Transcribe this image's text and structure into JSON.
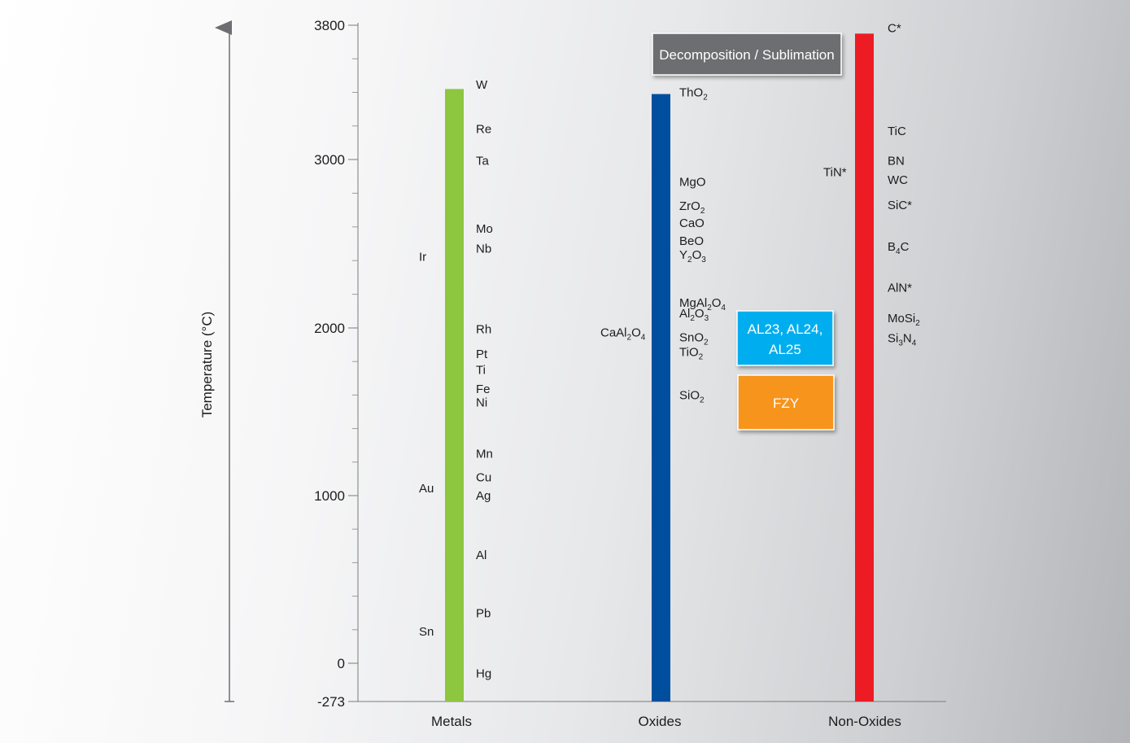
{
  "y_axis_label": "Temperature (°C)",
  "y_ticks": [
    "3800",
    "3000",
    "2000",
    "1000",
    "0",
    "-273"
  ],
  "categories": [
    "Metals",
    "Oxides",
    "Non-Oxides"
  ],
  "colors": {
    "metals_bar": "#8dc63f",
    "oxides_bar": "#004f9f",
    "nonoxides_bar": "#ed1c24",
    "decomposition_box": "#6d6e71",
    "al_box": "#00aeef",
    "fzy_box": "#f7941d"
  },
  "boxes": {
    "decomposition": "Decomposition / Sublimation",
    "al_line1": "AL23, AL24,",
    "al_line2": "AL25",
    "fzy": "FZY"
  },
  "chart_data": {
    "type": "bar",
    "ylabel": "Temperature (°C)",
    "ylim": [
      -273,
      3800
    ],
    "y_ticks": [
      3800,
      3000,
      2000,
      1000,
      0,
      -273
    ],
    "grid": false,
    "categories": [
      "Metals",
      "Oxides",
      "Non-Oxides"
    ],
    "series": [
      {
        "values": [
          3420,
          3390,
          3750
        ]
      }
    ],
    "materials": {
      "metals": [
        {
          "parts": [
            {
              "t": "W"
            }
          ],
          "temp": 3422
        },
        {
          "parts": [
            {
              "t": "Re"
            }
          ],
          "temp": 3186
        },
        {
          "parts": [
            {
              "t": "Ta"
            }
          ],
          "temp": 3017
        },
        {
          "parts": [
            {
              "t": "Mo"
            }
          ],
          "temp": 2623
        },
        {
          "parts": [
            {
              "t": "Ir"
            }
          ],
          "temp": 2466
        },
        {
          "parts": [
            {
              "t": "Nb"
            }
          ],
          "temp": 2477
        },
        {
          "parts": [
            {
              "t": "Rh"
            }
          ],
          "temp": 1964
        },
        {
          "parts": [
            {
              "t": "Pt"
            }
          ],
          "temp": 1768
        },
        {
          "parts": [
            {
              "t": "Ti"
            }
          ],
          "temp": 1668
        },
        {
          "parts": [
            {
              "t": "Fe"
            }
          ],
          "temp": 1538
        },
        {
          "parts": [
            {
              "t": "Ni"
            }
          ],
          "temp": 1455
        },
        {
          "parts": [
            {
              "t": "Mn"
            }
          ],
          "temp": 1246
        },
        {
          "parts": [
            {
              "t": "Au"
            }
          ],
          "temp": 1064
        },
        {
          "parts": [
            {
              "t": "Cu"
            }
          ],
          "temp": 1085
        },
        {
          "parts": [
            {
              "t": "Ag"
            }
          ],
          "temp": 962
        },
        {
          "parts": [
            {
              "t": "Al"
            }
          ],
          "temp": 660
        },
        {
          "parts": [
            {
              "t": "Sn"
            }
          ],
          "temp": 232
        },
        {
          "parts": [
            {
              "t": "Pb"
            }
          ],
          "temp": 327
        },
        {
          "parts": [
            {
              "t": "Hg"
            }
          ],
          "temp": -39
        }
      ],
      "oxides": [
        {
          "parts": [
            {
              "t": "ThO"
            },
            {
              "s": "2"
            }
          ],
          "temp": 3390
        },
        {
          "parts": [
            {
              "t": "MgO"
            }
          ],
          "temp": 2852
        },
        {
          "parts": [
            {
              "t": "ZrO"
            },
            {
              "s": "2"
            }
          ],
          "temp": 2715
        },
        {
          "parts": [
            {
              "t": "CaO"
            }
          ],
          "temp": 2613
        },
        {
          "parts": [
            {
              "t": "BeO"
            }
          ],
          "temp": 2507
        },
        {
          "parts": [
            {
              "t": "Y"
            },
            {
              "s": "2"
            },
            {
              "t": "O"
            },
            {
              "s": "3"
            }
          ],
          "temp": 2425
        },
        {
          "parts": [
            {
              "t": "MgAl"
            },
            {
              "s": "2"
            },
            {
              "t": "O"
            },
            {
              "s": "4"
            }
          ],
          "temp": 2135
        },
        {
          "parts": [
            {
              "t": "Al"
            },
            {
              "s": "2"
            },
            {
              "t": "O"
            },
            {
              "s": "3"
            }
          ],
          "temp": 2072
        },
        {
          "parts": [
            {
              "t": "SnO"
            },
            {
              "s": "2"
            }
          ],
          "temp": 1930
        },
        {
          "parts": [
            {
              "t": "TiO"
            },
            {
              "s": "2"
            }
          ],
          "temp": 1843
        },
        {
          "parts": [
            {
              "t": "SiO"
            },
            {
              "s": "2"
            }
          ],
          "temp": 1600
        },
        {
          "parts": [
            {
              "t": "CaAl"
            },
            {
              "s": "2"
            },
            {
              "t": "O"
            },
            {
              "s": "4"
            }
          ],
          "temp": 1930
        }
      ],
      "nonoxides": [
        {
          "parts": [
            {
              "t": "C*"
            }
          ],
          "temp": 3750
        },
        {
          "parts": [
            {
              "t": "TiC"
            }
          ],
          "temp": 3160
        },
        {
          "parts": [
            {
              "t": "BN"
            }
          ],
          "temp": 2973
        },
        {
          "parts": [
            {
              "t": "TiN*"
            }
          ],
          "temp": 2930
        },
        {
          "parts": [
            {
              "t": "WC"
            }
          ],
          "temp": 2870
        },
        {
          "parts": [
            {
              "t": "SiC*"
            }
          ],
          "temp": 2730
        },
        {
          "parts": [
            {
              "t": "B"
            },
            {
              "s": "4"
            },
            {
              "t": "C"
            }
          ],
          "temp": 2445
        },
        {
          "parts": [
            {
              "t": "AlN*"
            }
          ],
          "temp": 2200
        },
        {
          "parts": [
            {
              "t": "MoSi"
            },
            {
              "s": "2"
            }
          ],
          "temp": 2030
        },
        {
          "parts": [
            {
              "t": "Si"
            },
            {
              "s": "3"
            },
            {
              "t": "N"
            },
            {
              "s": "4"
            }
          ],
          "temp": 1900
        }
      ]
    }
  }
}
